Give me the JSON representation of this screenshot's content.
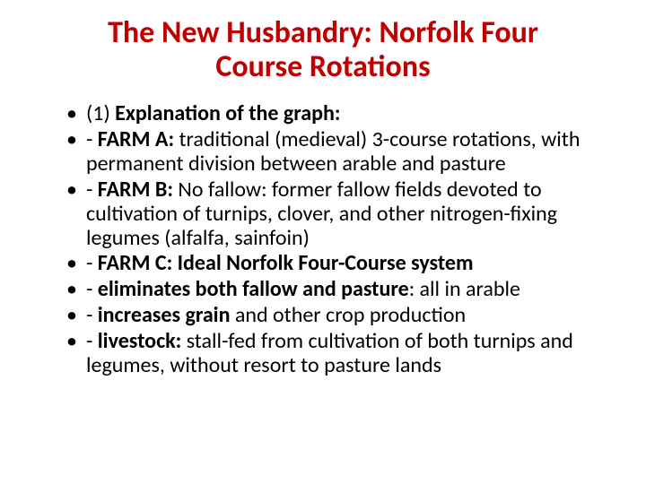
{
  "colors": {
    "title": "#c00000",
    "body": "#000000",
    "bullet": "#000000",
    "background": "#ffffff"
  },
  "typography": {
    "title_fontsize": 34,
    "title_weight": 700,
    "body_fontsize": 24,
    "line_height": 1.12,
    "font_family": "Calibri"
  },
  "title": "The New Husbandry: Norfolk Four Course Rotations",
  "bullets": [
    {
      "runs": [
        {
          "t": "(1) ",
          "b": false
        },
        {
          "t": "Explanation of the graph:",
          "b": true
        }
      ]
    },
    {
      "runs": [
        {
          "t": "- ",
          "b": false
        },
        {
          "t": "FARM A: ",
          "b": true
        },
        {
          "t": "traditional (medieval) 3-course rotations, with permanent division between arable and pasture",
          "b": false
        }
      ]
    },
    {
      "runs": [
        {
          "t": "- ",
          "b": false
        },
        {
          "t": "FARM B: ",
          "b": true
        },
        {
          "t": "No fallow: former fallow fields devoted to cultivation of turnips, clover, and other nitrogen-fixing legumes (alfalfa, sainfoin)",
          "b": false
        }
      ]
    },
    {
      "runs": [
        {
          "t": "- ",
          "b": false
        },
        {
          "t": "FARM C: Ideal Norfolk Four-Course system",
          "b": true
        }
      ]
    },
    {
      "runs": [
        {
          "t": "- ",
          "b": false
        },
        {
          "t": "eliminates both fallow and pasture",
          "b": true
        },
        {
          "t": ": all in arable",
          "b": false
        }
      ]
    },
    {
      "runs": [
        {
          "t": "- ",
          "b": false
        },
        {
          "t": "increases grain ",
          "b": true
        },
        {
          "t": "and other crop production",
          "b": false
        }
      ]
    },
    {
      "runs": [
        {
          "t": "- ",
          "b": false
        },
        {
          "t": "livestock:  ",
          "b": true
        },
        {
          "t": "stall-fed from cultivation of both turnips and legumes, without resort to pasture lands",
          "b": false
        }
      ]
    }
  ]
}
